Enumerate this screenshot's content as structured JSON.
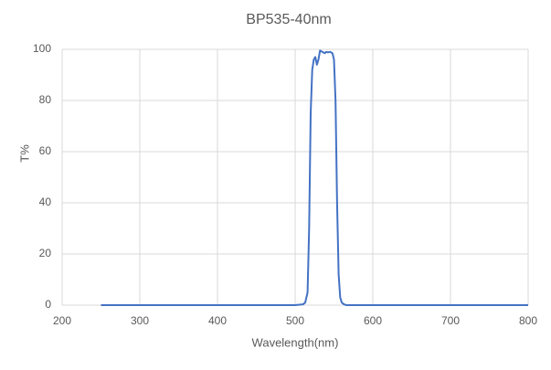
{
  "chart_data": {
    "type": "line",
    "title": "BP535-40nm",
    "x_label": "Wavelength(nm)",
    "y_label": "T%",
    "x": [
      250,
      400,
      500,
      510,
      513,
      516,
      518,
      520,
      522,
      524,
      526,
      528,
      530,
      532,
      535,
      538,
      540,
      542,
      545,
      548,
      550,
      552,
      554,
      556,
      558,
      560,
      563,
      566,
      570,
      600,
      700,
      800
    ],
    "series": [
      {
        "name": "BP535-40nm",
        "color": "#4472c4",
        "values": [
          0,
          0,
          0,
          0.3,
          1,
          5,
          30,
          75,
          92,
          96,
          97,
          94,
          96,
          99.5,
          99,
          98.5,
          99,
          98.8,
          99,
          98.5,
          96,
          80,
          40,
          12,
          3,
          1,
          0.3,
          0,
          0,
          0,
          0,
          0
        ]
      }
    ],
    "xlim": [
      200,
      800
    ],
    "xticks": [
      200,
      300,
      400,
      500,
      600,
      700,
      800
    ],
    "ylim": [
      0,
      100
    ],
    "yticks": [
      0,
      20,
      40,
      60,
      80,
      100
    ],
    "grid": true
  }
}
